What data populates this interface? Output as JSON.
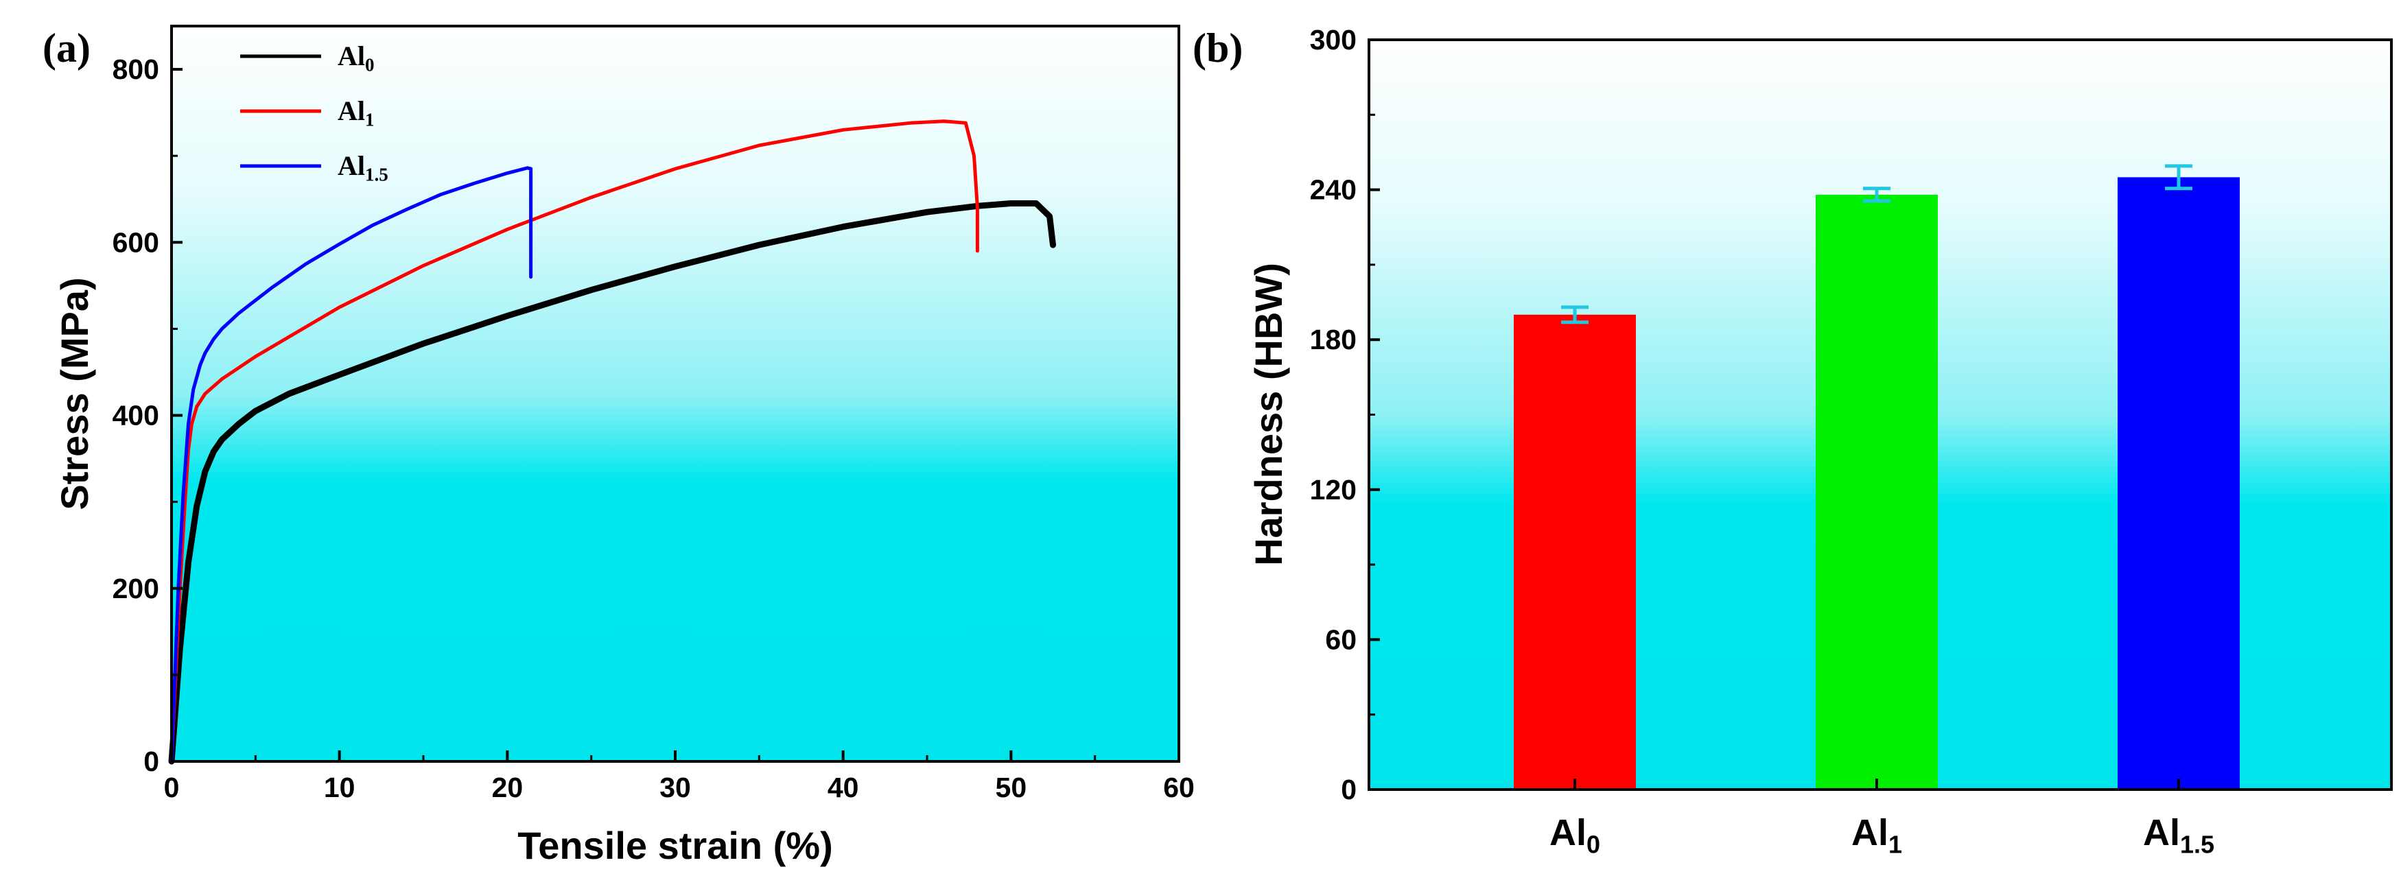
{
  "chart_data": [
    {
      "type": "line",
      "panel_label": "(a)",
      "xlabel": "Tensile strain (%)",
      "ylabel": "Stress (MPa)",
      "xlim": [
        0,
        60
      ],
      "ylim": [
        0,
        850
      ],
      "xticks": [
        "0",
        "10",
        "20",
        "30",
        "40",
        "50",
        "60"
      ],
      "yticks": [
        "0",
        "200",
        "400",
        "600",
        "800"
      ],
      "legend_position": "top-left",
      "series": [
        {
          "name": "Al",
          "subscript": "0",
          "color": "#000000",
          "x": [
            0,
            0.5,
            1.0,
            1.5,
            2.0,
            2.5,
            3,
            4,
            5,
            7,
            10,
            15,
            20,
            25,
            30,
            35,
            40,
            45,
            48,
            50,
            51.5,
            52.3,
            52.5
          ],
          "y": [
            0,
            130,
            230,
            295,
            335,
            358,
            372,
            390,
            405,
            425,
            447,
            483,
            515,
            545,
            572,
            597,
            618,
            635,
            642,
            645,
            645,
            630,
            597
          ]
        },
        {
          "name": "Al",
          "subscript": "1",
          "color": "#ff0000",
          "x": [
            0,
            0.5,
            0.8,
            1.0,
            1.2,
            1.5,
            2.0,
            3,
            5,
            10,
            15,
            20,
            25,
            30,
            35,
            40,
            44,
            46,
            47.3,
            47.8,
            48.0,
            48.0
          ],
          "y": [
            0,
            200,
            300,
            360,
            390,
            410,
            425,
            442,
            468,
            525,
            573,
            615,
            652,
            685,
            712,
            730,
            738,
            740,
            738,
            700,
            640,
            590
          ]
        },
        {
          "name": "Al",
          "subscript": "1.5",
          "color": "#0000ff",
          "x": [
            0,
            0.4,
            0.7,
            1.0,
            1.3,
            1.7,
            2.0,
            2.5,
            3,
            4,
            6,
            8,
            10,
            12,
            14,
            16,
            18,
            20,
            21.2,
            21.4,
            21.4,
            21.4
          ],
          "y": [
            0,
            200,
            310,
            390,
            430,
            458,
            472,
            488,
            500,
            518,
            548,
            575,
            598,
            620,
            638,
            655,
            668,
            680,
            686,
            685,
            620,
            560
          ]
        }
      ]
    },
    {
      "type": "bar",
      "panel_label": "(b)",
      "xlabel": "",
      "ylabel": "Hardness (HBW)",
      "ylim": [
        0,
        300
      ],
      "yticks": [
        "0",
        "60",
        "120",
        "180",
        "240",
        "300"
      ],
      "categories": [
        {
          "name": "Al",
          "subscript": "0"
        },
        {
          "name": "Al",
          "subscript": "1"
        },
        {
          "name": "Al",
          "subscript": "1.5"
        }
      ],
      "values": [
        190,
        238,
        245
      ],
      "errors": [
        3,
        2.5,
        4.5
      ],
      "bar_colors": [
        "#ff0000",
        "#00ee00",
        "#0000ff"
      ],
      "error_color": "#22c8e0"
    }
  ]
}
